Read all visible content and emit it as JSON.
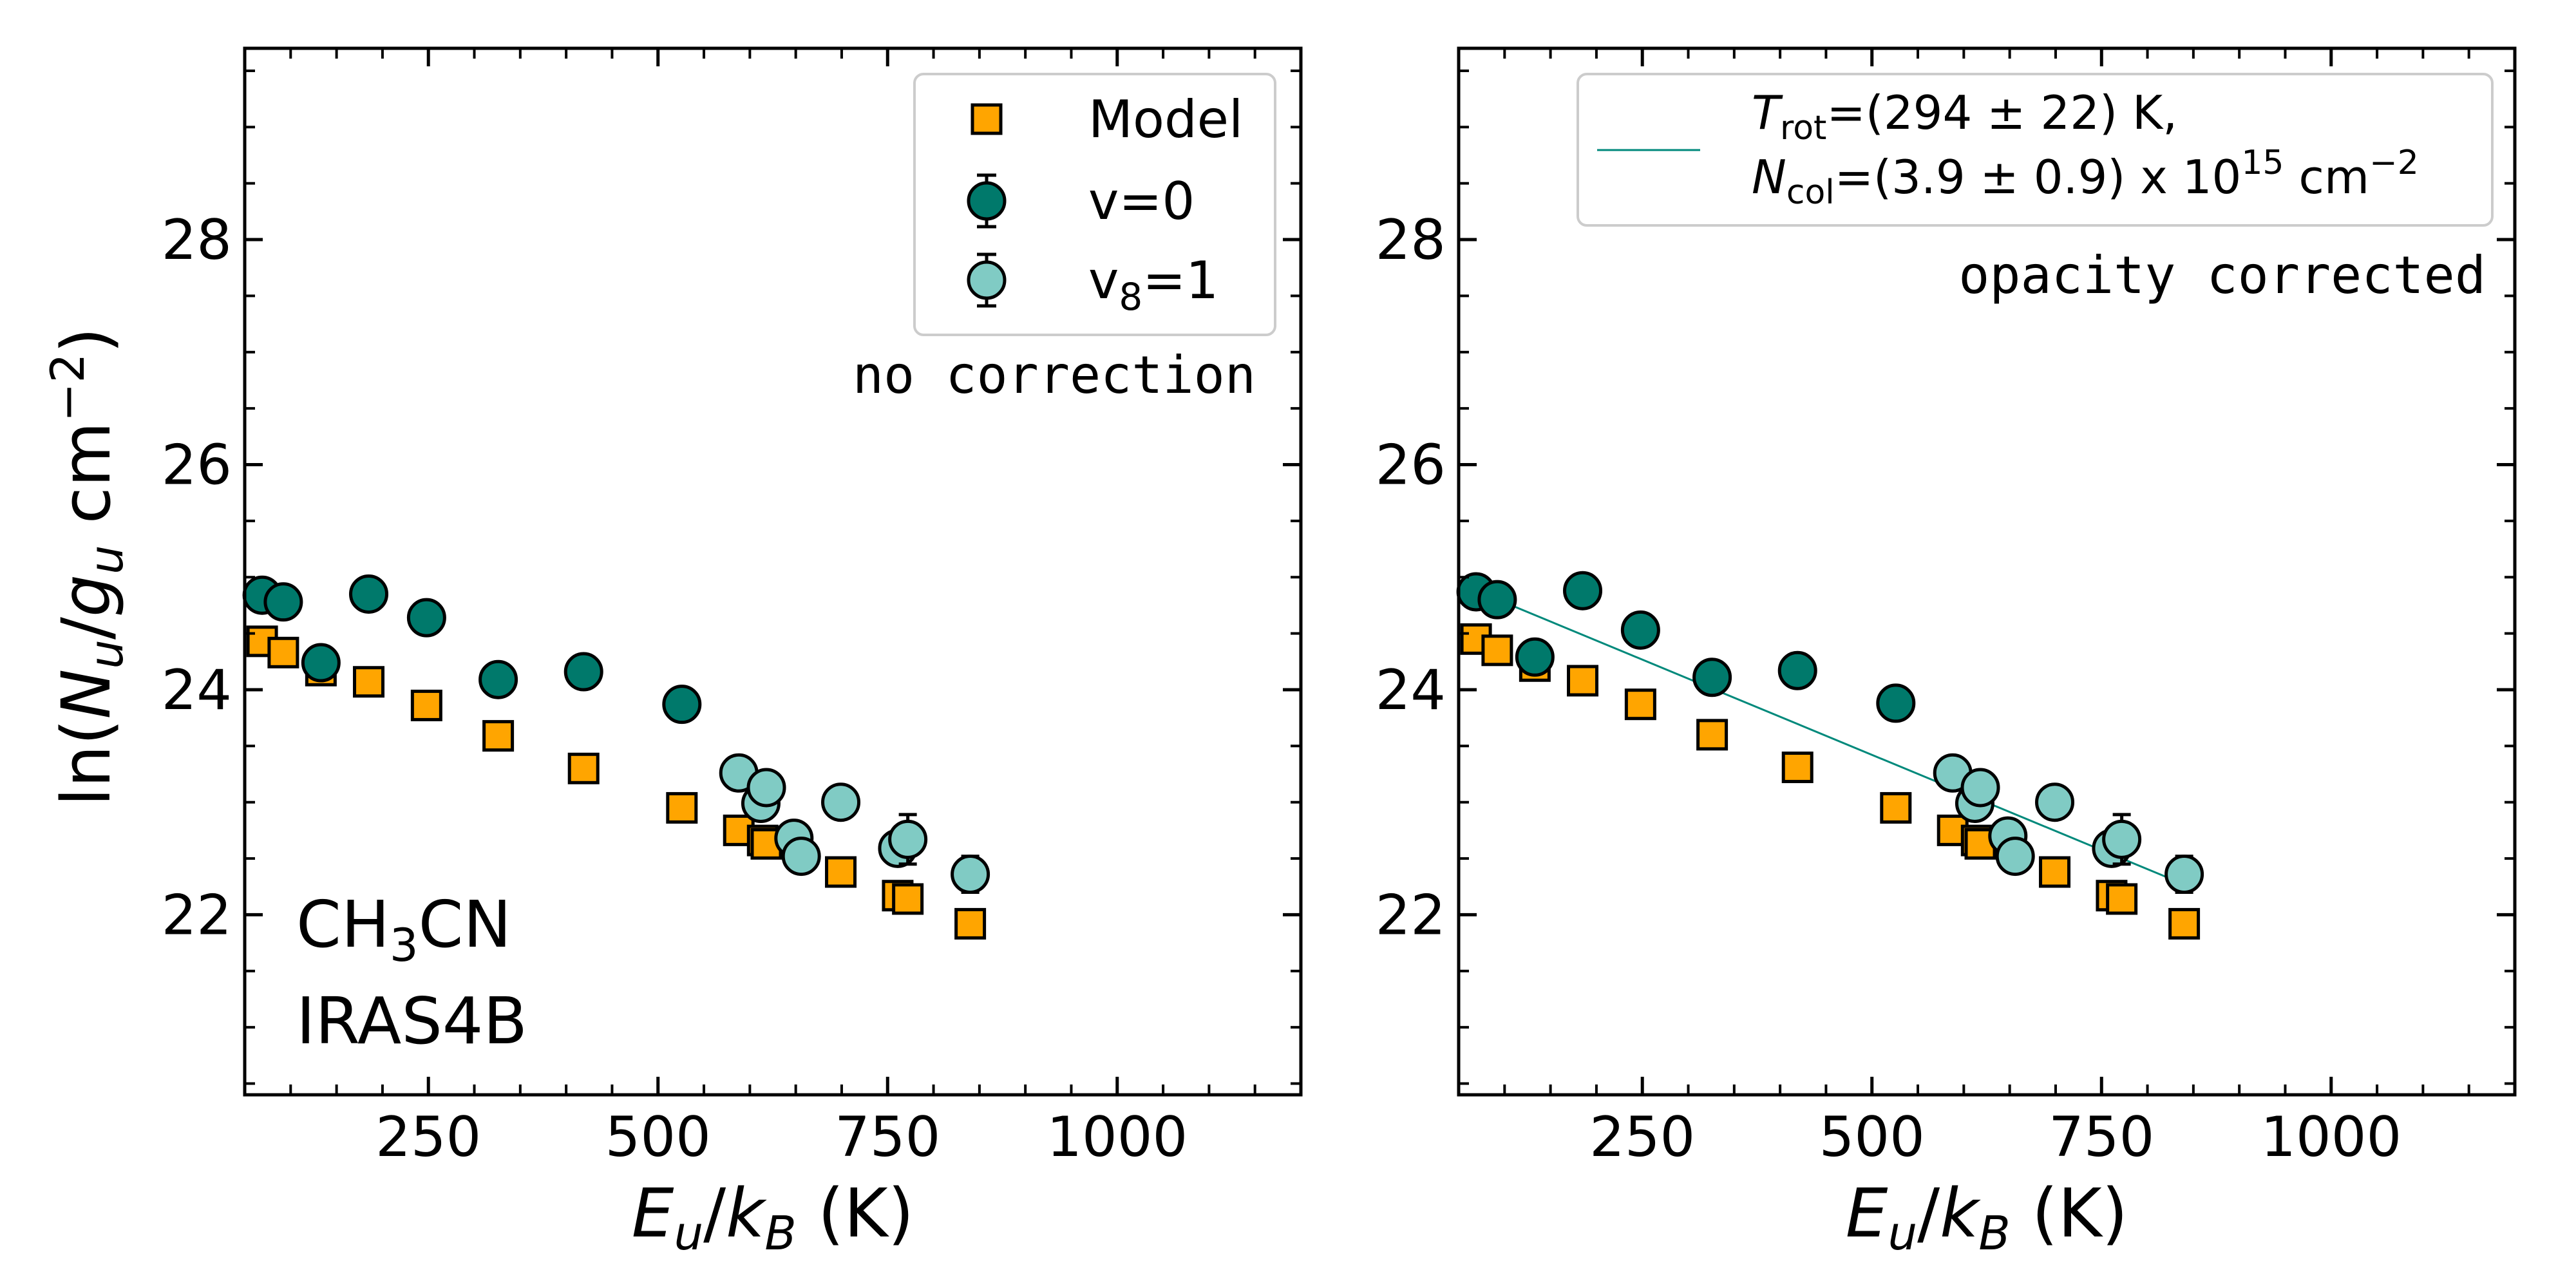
{
  "figure": {
    "ylabel": "ln(N_u/g_u cm^-2)",
    "xlabel": "E_u/k_B (K)"
  },
  "chart_data": [
    {
      "type": "scatter",
      "panel": "left",
      "xlim": [
        50,
        1200
      ],
      "ylim": [
        20.4,
        29.7
      ],
      "xticks": [
        250,
        500,
        750,
        1000
      ],
      "yticks": [
        22,
        24,
        26,
        28
      ],
      "annotation": "no correction",
      "molecule": "CH3CN",
      "source": "IRAS4B",
      "legend": {
        "position": "top-right",
        "entries": [
          "Model",
          "v=0",
          "v8=1"
        ]
      },
      "colors": {
        "model": "#FFA500",
        "v0": "#00796B",
        "v8": "#80CBC4"
      },
      "series": [
        {
          "name": "Model",
          "marker": "square",
          "points": [
            [
              69,
              24.43
            ],
            [
              92,
              24.33
            ],
            [
              133,
              24.17
            ],
            [
              185,
              24.07
            ],
            [
              248,
              23.86
            ],
            [
              326,
              23.59
            ],
            [
              419,
              23.3
            ],
            [
              526,
              22.95
            ],
            [
              588,
              22.75
            ],
            [
              614,
              22.66
            ],
            [
              618,
              22.63
            ],
            [
              699,
              22.38
            ],
            [
              761,
              22.17
            ],
            [
              772,
              22.14
            ],
            [
              840,
              21.92
            ]
          ]
        },
        {
          "name": "v=0",
          "marker": "circle",
          "points": [
            [
              69,
              24.84,
              0.05
            ],
            [
              92,
              24.78,
              0.05
            ],
            [
              133,
              24.24,
              0.05
            ],
            [
              185,
              24.85,
              0.05
            ],
            [
              248,
              24.64,
              0.05
            ],
            [
              326,
              24.09,
              0.05
            ],
            [
              419,
              24.16,
              0.05
            ],
            [
              526,
              23.87,
              0.05
            ]
          ]
        },
        {
          "name": "v8=1",
          "marker": "circle",
          "points": [
            [
              588,
              23.26,
              0.06
            ],
            [
              612,
              22.99,
              0.08
            ],
            [
              618,
              23.13,
              0.08
            ],
            [
              648,
              22.68,
              0.08
            ],
            [
              656,
              22.52,
              0.08
            ],
            [
              699,
              23.0,
              0.08
            ],
            [
              761,
              22.59,
              0.12
            ],
            [
              772,
              22.67,
              0.22
            ],
            [
              840,
              22.36,
              0.16
            ]
          ]
        }
      ]
    },
    {
      "type": "scatter",
      "panel": "right",
      "xlim": [
        50,
        1200
      ],
      "ylim": [
        20.4,
        29.7
      ],
      "xticks": [
        250,
        500,
        750,
        1000
      ],
      "yticks": [
        22,
        24,
        26,
        28
      ],
      "annotation": "opacity corrected",
      "legend": {
        "position": "top-right",
        "entries": [
          "T_rot=(294 ± 22) K,",
          "N_col=(3.9 ± 0.9) x 10^15 cm^-2"
        ]
      },
      "fit": {
        "T_rot_text": "=(294 ± 22) K,",
        "N_col_text_a": "=(3.9 ± 0.9) x 10",
        "N_col_exp": "15",
        "N_col_unit": " cm",
        "N_col_unit_exp": "−2",
        "x": [
          69,
          840
        ],
        "y": [
          24.88,
          22.27
        ],
        "color": "#00897B"
      },
      "colors": {
        "model": "#FFA500",
        "v0": "#00796B",
        "v8": "#80CBC4"
      },
      "series": [
        {
          "name": "Model",
          "marker": "square",
          "points": [
            [
              69,
              24.45
            ],
            [
              92,
              24.35
            ],
            [
              133,
              24.21
            ],
            [
              185,
              24.08
            ],
            [
              248,
              23.87
            ],
            [
              326,
              23.6
            ],
            [
              419,
              23.31
            ],
            [
              526,
              22.95
            ],
            [
              588,
              22.75
            ],
            [
              614,
              22.66
            ],
            [
              618,
              22.63
            ],
            [
              699,
              22.38
            ],
            [
              761,
              22.17
            ],
            [
              772,
              22.14
            ],
            [
              840,
              21.92
            ]
          ]
        },
        {
          "name": "v=0",
          "marker": "circle",
          "points": [
            [
              69,
              24.87,
              0.05
            ],
            [
              92,
              24.8,
              0.05
            ],
            [
              133,
              24.29,
              0.05
            ],
            [
              185,
              24.88,
              0.05
            ],
            [
              248,
              24.53,
              0.05
            ],
            [
              326,
              24.11,
              0.05
            ],
            [
              419,
              24.17,
              0.05
            ],
            [
              526,
              23.88,
              0.05
            ]
          ]
        },
        {
          "name": "v8=1",
          "marker": "circle",
          "points": [
            [
              588,
              23.26,
              0.06
            ],
            [
              612,
              22.99,
              0.08
            ],
            [
              618,
              23.13,
              0.08
            ],
            [
              648,
              22.7,
              0.08
            ],
            [
              656,
              22.52,
              0.08
            ],
            [
              699,
              23.0,
              0.08
            ],
            [
              761,
              22.59,
              0.12
            ],
            [
              772,
              22.67,
              0.22
            ],
            [
              840,
              22.36,
              0.16
            ]
          ]
        }
      ]
    }
  ]
}
